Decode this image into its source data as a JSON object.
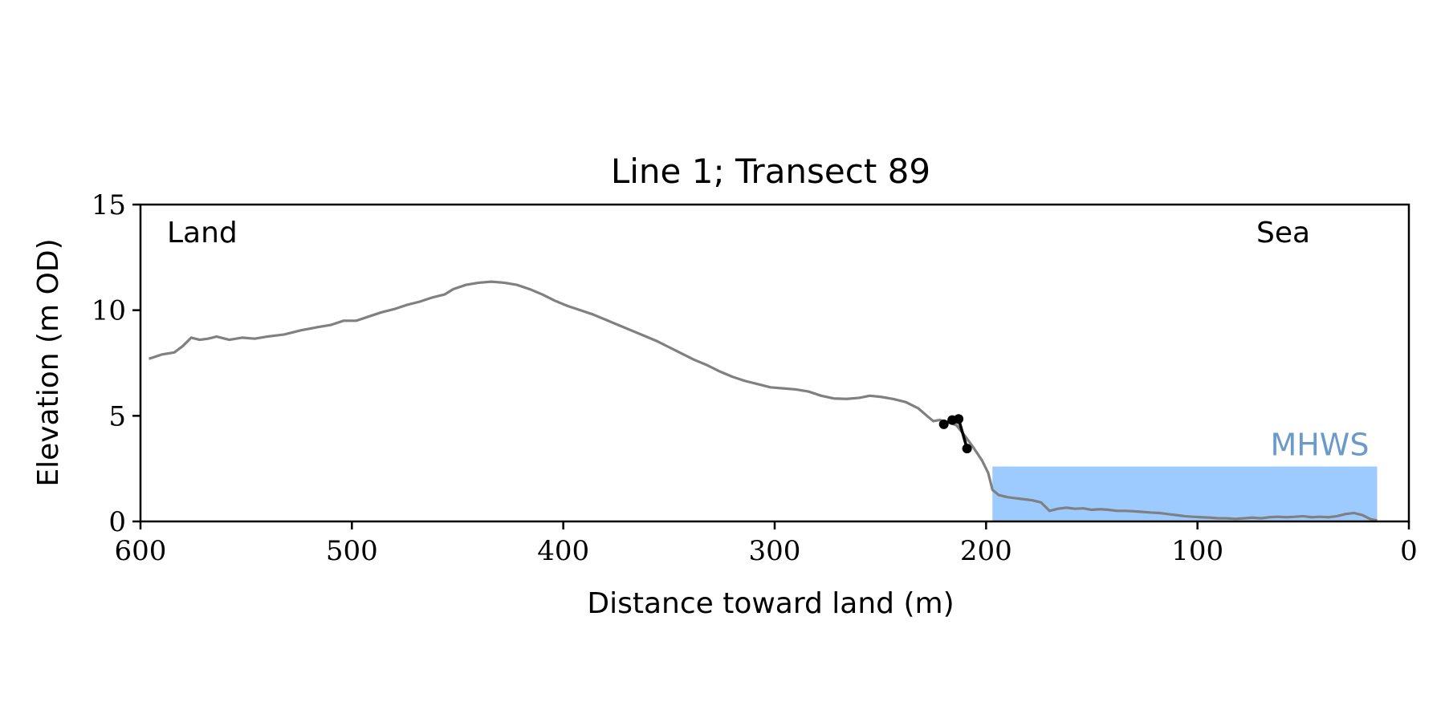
{
  "chart_data": {
    "type": "line",
    "title": "Line 1; Transect 89",
    "xlabel": "Distance toward land (m)",
    "ylabel": "Elevation (m OD)",
    "xlim": [
      600,
      0
    ],
    "ylim": [
      0,
      15
    ],
    "x_ticks": [
      "600",
      "500",
      "400",
      "300",
      "200",
      "100",
      "0"
    ],
    "y_ticks": [
      "0",
      "5",
      "10",
      "15"
    ],
    "grid": false,
    "annotations": {
      "left": "Land",
      "right": "Sea"
    },
    "mhws": {
      "label": "MHWS",
      "level": 2.6,
      "x_from": 197,
      "x_to": 15,
      "color": "#9ecbff",
      "label_color": "#6a9ac9"
    },
    "profile": {
      "color": "#808080",
      "points": [
        [
          596,
          7.7
        ],
        [
          590,
          7.9
        ],
        [
          584,
          8.0
        ],
        [
          580,
          8.3
        ],
        [
          576,
          8.7
        ],
        [
          572,
          8.6
        ],
        [
          568,
          8.65
        ],
        [
          564,
          8.75
        ],
        [
          558,
          8.6
        ],
        [
          552,
          8.7
        ],
        [
          546,
          8.65
        ],
        [
          540,
          8.75
        ],
        [
          532,
          8.85
        ],
        [
          524,
          9.05
        ],
        [
          516,
          9.2
        ],
        [
          510,
          9.3
        ],
        [
          504,
          9.5
        ],
        [
          498,
          9.5
        ],
        [
          492,
          9.7
        ],
        [
          486,
          9.9
        ],
        [
          480,
          10.05
        ],
        [
          474,
          10.25
        ],
        [
          468,
          10.4
        ],
        [
          462,
          10.6
        ],
        [
          456,
          10.75
        ],
        [
          452,
          11.0
        ],
        [
          446,
          11.2
        ],
        [
          440,
          11.3
        ],
        [
          434,
          11.35
        ],
        [
          428,
          11.3
        ],
        [
          422,
          11.2
        ],
        [
          416,
          11.0
        ],
        [
          410,
          10.75
        ],
        [
          404,
          10.45
        ],
        [
          398,
          10.2
        ],
        [
          392,
          10.0
        ],
        [
          386,
          9.8
        ],
        [
          380,
          9.55
        ],
        [
          374,
          9.3
        ],
        [
          368,
          9.05
        ],
        [
          362,
          8.8
        ],
        [
          356,
          8.55
        ],
        [
          350,
          8.25
        ],
        [
          344,
          7.95
        ],
        [
          338,
          7.65
        ],
        [
          332,
          7.4
        ],
        [
          326,
          7.1
        ],
        [
          320,
          6.85
        ],
        [
          314,
          6.65
        ],
        [
          308,
          6.5
        ],
        [
          302,
          6.35
        ],
        [
          296,
          6.3
        ],
        [
          290,
          6.25
        ],
        [
          284,
          6.15
        ],
        [
          278,
          5.95
        ],
        [
          272,
          5.82
        ],
        [
          266,
          5.8
        ],
        [
          260,
          5.85
        ],
        [
          255,
          5.95
        ],
        [
          250,
          5.9
        ],
        [
          244,
          5.8
        ],
        [
          238,
          5.65
        ],
        [
          232,
          5.35
        ],
        [
          228,
          5.0
        ],
        [
          225,
          4.75
        ],
        [
          222,
          4.8
        ],
        [
          218,
          4.7
        ],
        [
          214,
          4.55
        ],
        [
          210,
          4.05
        ],
        [
          206,
          3.5
        ],
        [
          202,
          2.9
        ],
        [
          199,
          2.3
        ],
        [
          197,
          1.5
        ],
        [
          194,
          1.25
        ],
        [
          190,
          1.15
        ],
        [
          186,
          1.1
        ],
        [
          182,
          1.05
        ],
        [
          178,
          1.0
        ],
        [
          174,
          0.9
        ],
        [
          170,
          0.5
        ],
        [
          166,
          0.6
        ],
        [
          162,
          0.65
        ],
        [
          158,
          0.6
        ],
        [
          154,
          0.62
        ],
        [
          150,
          0.55
        ],
        [
          146,
          0.58
        ],
        [
          142,
          0.55
        ],
        [
          138,
          0.5
        ],
        [
          134,
          0.5
        ],
        [
          130,
          0.48
        ],
        [
          126,
          0.45
        ],
        [
          122,
          0.42
        ],
        [
          118,
          0.4
        ],
        [
          114,
          0.35
        ],
        [
          110,
          0.3
        ],
        [
          106,
          0.25
        ],
        [
          102,
          0.22
        ],
        [
          98,
          0.2
        ],
        [
          94,
          0.18
        ],
        [
          90,
          0.15
        ],
        [
          86,
          0.15
        ],
        [
          82,
          0.12
        ],
        [
          78,
          0.15
        ],
        [
          74,
          0.18
        ],
        [
          70,
          0.15
        ],
        [
          66,
          0.2
        ],
        [
          62,
          0.22
        ],
        [
          58,
          0.2
        ],
        [
          54,
          0.22
        ],
        [
          50,
          0.25
        ],
        [
          46,
          0.2
        ],
        [
          42,
          0.22
        ],
        [
          38,
          0.2
        ],
        [
          34,
          0.25
        ],
        [
          30,
          0.35
        ],
        [
          26,
          0.4
        ],
        [
          22,
          0.3
        ],
        [
          18,
          0.1
        ],
        [
          15,
          0.05
        ]
      ]
    },
    "feature": {
      "color": "#000000",
      "points": [
        [
          220,
          4.6
        ],
        [
          216,
          4.8
        ],
        [
          213,
          4.85
        ],
        [
          209,
          3.45
        ]
      ],
      "markers": [
        [
          220,
          4.6
        ],
        [
          216,
          4.8
        ],
        [
          213,
          4.85
        ],
        [
          209,
          3.45
        ]
      ]
    }
  }
}
